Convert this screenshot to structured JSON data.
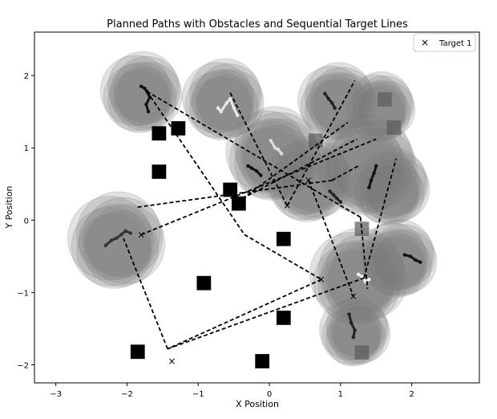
{
  "chart_data": {
    "type": "scatter",
    "title": "Planned Paths with Obstacles and Sequential Target Lines",
    "xlabel": "X Position",
    "ylabel": "Y Position",
    "xlim": [
      -3.3,
      2.95
    ],
    "ylim": [
      -2.25,
      2.6
    ],
    "xticks": [
      -3,
      -2,
      -1,
      0,
      1,
      2
    ],
    "yticks": [
      -2,
      -1,
      0,
      1,
      2
    ],
    "grid": false,
    "legend": {
      "placement": "top-right",
      "entries": [
        "Target 1"
      ]
    },
    "colors": {
      "obstacle": "#000000",
      "path_line": "#000000",
      "cloud": "#7a7a7a",
      "marker": "#555555"
    },
    "obstacles": [
      {
        "x": -1.55,
        "y": 1.2,
        "shade": "dark"
      },
      {
        "x": -1.28,
        "y": 1.27,
        "shade": "dark"
      },
      {
        "x": -1.55,
        "y": 0.67,
        "shade": "dark"
      },
      {
        "x": -0.55,
        "y": 0.42,
        "shade": "dark"
      },
      {
        "x": -0.43,
        "y": 0.23,
        "shade": "dark"
      },
      {
        "x": 0.2,
        "y": -0.26,
        "shade": "dark"
      },
      {
        "x": -0.92,
        "y": -0.87,
        "shade": "dark"
      },
      {
        "x": 0.2,
        "y": -1.35,
        "shade": "dark"
      },
      {
        "x": -1.85,
        "y": -1.82,
        "shade": "dark"
      },
      {
        "x": -0.1,
        "y": -1.95,
        "shade": "dark"
      },
      {
        "x": 0.65,
        "y": 1.1,
        "shade": "mid"
      },
      {
        "x": 1.62,
        "y": 1.67,
        "shade": "mid"
      },
      {
        "x": 1.75,
        "y": 1.28,
        "shade": "mid"
      },
      {
        "x": 1.3,
        "y": -0.12,
        "shade": "mid"
      },
      {
        "x": 1.3,
        "y": -1.83,
        "shade": "mid"
      }
    ],
    "clouds": [
      {
        "x": -1.8,
        "y": 1.75,
        "r": 0.52
      },
      {
        "x": -0.65,
        "y": 1.65,
        "r": 0.52
      },
      {
        "x": 0.95,
        "y": 1.62,
        "r": 0.5
      },
      {
        "x": 1.55,
        "y": 1.55,
        "r": 0.45
      },
      {
        "x": 0.05,
        "y": 0.9,
        "r": 0.6
      },
      {
        "x": 0.55,
        "y": 0.55,
        "r": 0.55
      },
      {
        "x": 1.35,
        "y": 0.75,
        "r": 0.65
      },
      {
        "x": 1.7,
        "y": 0.45,
        "r": 0.5
      },
      {
        "x": -2.15,
        "y": -0.3,
        "r": 0.62
      },
      {
        "x": 1.25,
        "y": -0.8,
        "r": 0.62
      },
      {
        "x": 1.8,
        "y": -0.55,
        "r": 0.5
      },
      {
        "x": 1.2,
        "y": -1.55,
        "r": 0.45
      }
    ],
    "path_segments": [
      {
        "x": [
          -1.72,
          -0.35
        ],
        "y": [
          1.78,
          -0.2
        ]
      },
      {
        "x": [
          -0.35,
          0.73
        ],
        "y": [
          -0.2,
          -0.82
        ]
      },
      {
        "x": [
          0.73,
          -1.43
        ],
        "y": [
          -0.82,
          -1.78
        ]
      },
      {
        "x": [
          -1.43,
          -2.05
        ],
        "y": [
          -1.78,
          -0.25
        ]
      },
      {
        "x": [
          -1.72,
          1.28
        ],
        "y": [
          1.78,
          0.04
        ]
      },
      {
        "x": [
          1.28,
          1.38
        ],
        "y": [
          0.04,
          -0.95
        ]
      },
      {
        "x": [
          -0.55,
          0.25
        ],
        "y": [
          1.76,
          0.2
        ]
      },
      {
        "x": [
          0.25,
          1.2
        ],
        "y": [
          0.2,
          1.93
        ]
      },
      {
        "x": [
          -0.38,
          1.1
        ],
        "y": [
          0.3,
          1.35
        ]
      },
      {
        "x": [
          -0.38,
          1.23
        ],
        "y": [
          0.3,
          1.12
        ]
      },
      {
        "x": [
          -1.85,
          0.88
        ],
        "y": [
          0.18,
          0.55
        ]
      },
      {
        "x": [
          0.88,
          1.25
        ],
        "y": [
          0.55,
          0.75
        ]
      },
      {
        "x": [
          -1.8,
          1.5
        ],
        "y": [
          -0.2,
          1.12
        ]
      },
      {
        "x": [
          0.55,
          1.18
        ],
        "y": [
          0.55,
          -1.05
        ]
      },
      {
        "x": [
          -1.43,
          1.33
        ],
        "y": [
          -1.78,
          -0.8
        ]
      },
      {
        "x": [
          1.33,
          1.78
        ],
        "y": [
          -0.8,
          0.85
        ]
      }
    ],
    "x_markers": [
      {
        "x": -1.37,
        "y": -1.95
      },
      {
        "x": 0.73,
        "y": -0.82
      },
      {
        "x": -1.8,
        "y": -0.2
      },
      {
        "x": 0.25,
        "y": 0.2
      },
      {
        "x": 0.55,
        "y": 0.55
      },
      {
        "x": 1.18,
        "y": -1.05
      }
    ],
    "trajectories": [
      {
        "x": [
          -1.8,
          -1.75,
          -1.72,
          -1.68,
          -1.73,
          -1.7
        ],
        "y": [
          1.85,
          1.82,
          1.78,
          1.7,
          1.6,
          1.5
        ]
      },
      {
        "x": [
          -0.72,
          -0.68,
          -0.6,
          -0.55,
          -0.5,
          -0.45
        ],
        "y": [
          1.55,
          1.5,
          1.62,
          1.68,
          1.55,
          1.45
        ]
      },
      {
        "x": [
          0.78,
          0.83,
          0.88,
          0.92
        ],
        "y": [
          1.75,
          1.68,
          1.62,
          1.55
        ]
      },
      {
        "x": [
          0.02,
          0.08,
          0.12,
          0.17
        ],
        "y": [
          1.1,
          1.0,
          0.98,
          0.92
        ]
      },
      {
        "x": [
          -0.3,
          -0.25,
          -0.18,
          -0.12
        ],
        "y": [
          0.75,
          0.72,
          0.68,
          0.62
        ]
      },
      {
        "x": [
          0.85,
          0.9,
          0.95,
          1.0
        ],
        "y": [
          0.4,
          0.35,
          0.3,
          0.25
        ]
      },
      {
        "x": [
          1.4,
          1.43,
          1.47,
          1.5
        ],
        "y": [
          0.45,
          0.55,
          0.65,
          0.75
        ]
      },
      {
        "x": [
          -2.3,
          -2.22,
          -2.15,
          -2.08,
          -2.02,
          -1.95
        ],
        "y": [
          -0.35,
          -0.28,
          -0.25,
          -0.2,
          -0.15,
          -0.18
        ]
      },
      {
        "x": [
          1.25,
          1.3,
          1.35,
          1.4
        ],
        "y": [
          -0.75,
          -0.78,
          -0.85,
          -0.82
        ]
      },
      {
        "x": [
          1.9,
          1.98,
          2.05,
          2.12
        ],
        "y": [
          -0.48,
          -0.5,
          -0.55,
          -0.58
        ]
      },
      {
        "x": [
          1.12,
          1.15,
          1.2,
          1.18
        ],
        "y": [
          -1.3,
          -1.42,
          -1.52,
          -1.62
        ]
      }
    ]
  }
}
